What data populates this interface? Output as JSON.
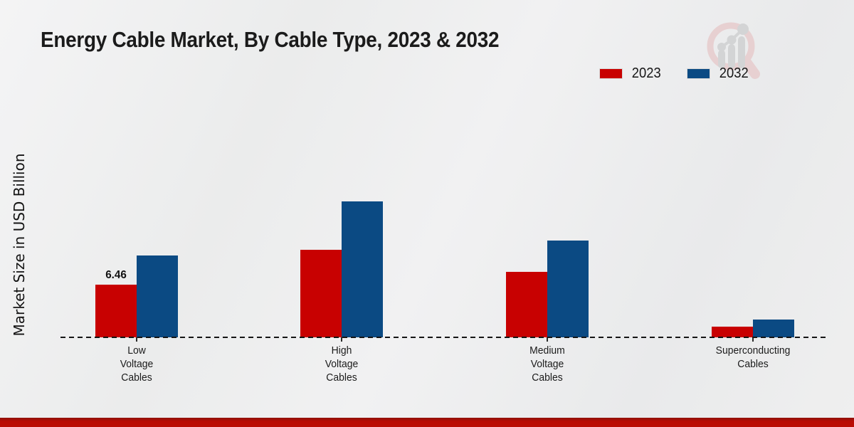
{
  "title": "Energy Cable Market, By Cable Type, 2023 & 2032",
  "chart_data": {
    "type": "bar",
    "title": "Energy Cable Market, By Cable Type, 2023 & 2032",
    "ylabel": "Market Size in USD Billion",
    "xlabel": "",
    "categories": [
      "Low Voltage Cables",
      "High Voltage Cables",
      "Medium Voltage Cables",
      "Superconducting Cables"
    ],
    "category_lines": [
      [
        "Low",
        "Voltage",
        "Cables"
      ],
      [
        "High",
        "Voltage",
        "Cables"
      ],
      [
        "Medium",
        "Voltage",
        "Cables"
      ],
      [
        "Superconducting",
        "Cables"
      ]
    ],
    "series": [
      {
        "name": "2023",
        "color": "#c80101",
        "values": [
          6.46,
          10.7,
          8.0,
          1.3
        ]
      },
      {
        "name": "2032",
        "color": "#0b4a83",
        "values": [
          10.0,
          16.7,
          11.9,
          2.2
        ]
      }
    ],
    "bar_labels": [
      {
        "category_index": 0,
        "series_index": 0,
        "text": "6.46"
      }
    ],
    "ylim": [
      0,
      18
    ],
    "gridlines": false,
    "baseline_style": "dashed",
    "legend_position": "top-right"
  },
  "colors": {
    "series_2023": "#c80101",
    "series_2032": "#0b4a83",
    "footer_strip": "#b90b03",
    "background": "#ededee",
    "axis_line": "#151515"
  }
}
